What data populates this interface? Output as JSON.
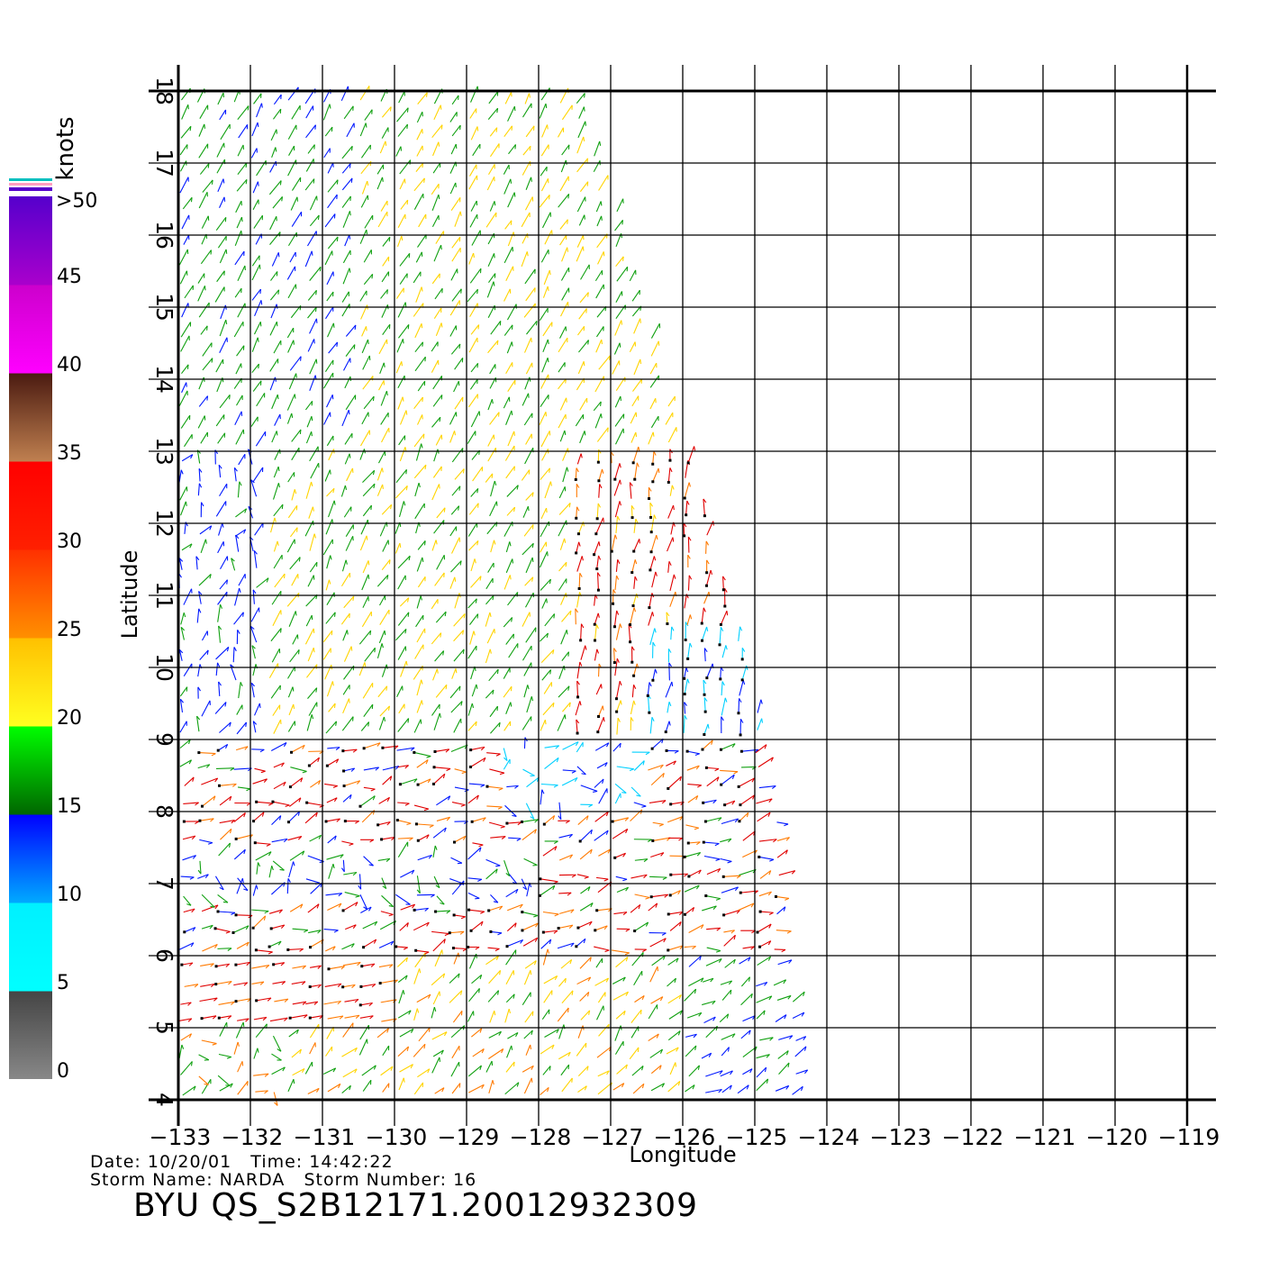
{
  "map": {
    "title": "",
    "xlabel": "Longitude",
    "ylabel": "Latitude",
    "lon_range": [
      -133,
      -119
    ],
    "lat_range": [
      4,
      18
    ],
    "lon_ticks": [
      "-133",
      "-132",
      "-131",
      "-130",
      "-129",
      "-128",
      "-127",
      "-126",
      "-125",
      "-124",
      "-123",
      "-122",
      "-121",
      "-120",
      "-119"
    ],
    "lat_ticks": [
      "4",
      "5",
      "6",
      "7",
      "8",
      "9",
      "10",
      "11",
      "12",
      "13",
      "14",
      "15",
      "16",
      "17",
      "18"
    ],
    "grid": true,
    "swath": {
      "description_lon_lat": [
        [
          -133,
          18
        ],
        [
          -127.4,
          18
        ],
        [
          -124.8,
          9
        ],
        [
          -124.8,
          8.5
        ],
        [
          -124.3,
          4
        ],
        [
          -133,
          4
        ]
      ]
    }
  },
  "colorbar": {
    "units": "knots",
    "labels": [
      "0",
      "5",
      "10",
      "15",
      "20",
      "25",
      "30",
      "35",
      "40",
      "45",
      ">50"
    ],
    "bands": [
      {
        "from": 0,
        "to": 5,
        "top": "#444444",
        "bottom": "#888888"
      },
      {
        "from": 5,
        "to": 10,
        "top": "#00f0ff",
        "bottom": "#00ffff"
      },
      {
        "from": 10,
        "to": 15,
        "top": "#0000ff",
        "bottom": "#00aaff"
      },
      {
        "from": 15,
        "to": 20,
        "top": "#00ff00",
        "bottom": "#006600"
      },
      {
        "from": 20,
        "to": 25,
        "top": "#ffc000",
        "bottom": "#ffff20"
      },
      {
        "from": 25,
        "to": 30,
        "top": "#ff3000",
        "bottom": "#ff9000"
      },
      {
        "from": 30,
        "to": 35,
        "top": "#ff0000",
        "bottom": "#ff2000"
      },
      {
        "from": 35,
        "to": 40,
        "top": "#4a1a10",
        "bottom": "#c08050"
      },
      {
        "from": 40,
        "to": 45,
        "top": "#cc00cc",
        "bottom": "#ff00ff"
      },
      {
        "from": 45,
        "to": 50,
        "top": "#5500cc",
        "bottom": "#aa00cc"
      }
    ]
  },
  "wind_colors": {
    "blue": "#0018ff",
    "green": "#10a010",
    "yellow": "#ffd400",
    "orange": "#ff7a00",
    "red": "#e00000",
    "cyan": "#00d0ff"
  },
  "info": {
    "line1": "Date: 10/20/01   Time: 14:42:22",
    "line2": "Storm Name: NARDA   Storm Number: 16",
    "pass_id": "BYU QS_S2B12171.20012932309"
  }
}
